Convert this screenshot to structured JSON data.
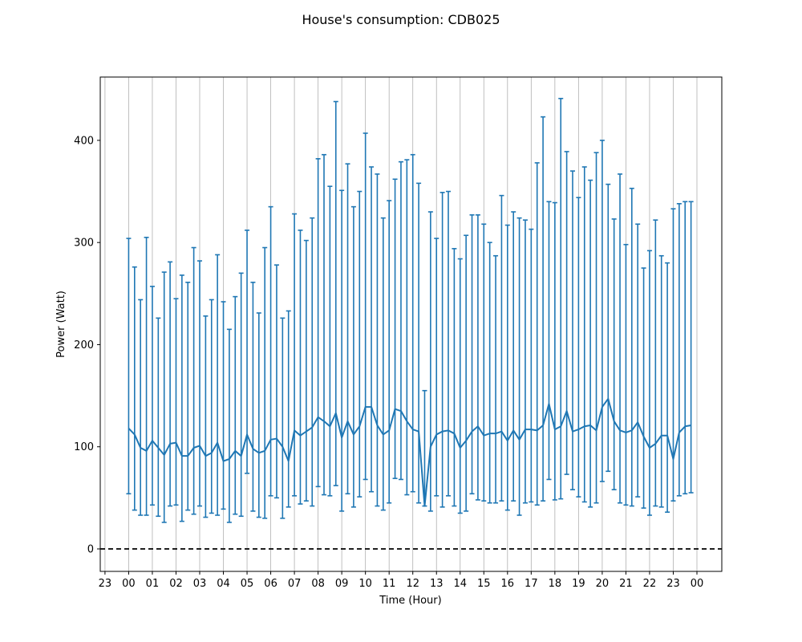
{
  "chart_data": {
    "type": "line",
    "title": "House's consumption: CDB025",
    "xlabel": "Time (Hour)",
    "ylabel": "Power (Watt)",
    "x_tick_labels": [
      "23",
      "00",
      "01",
      "02",
      "03",
      "04",
      "05",
      "06",
      "07",
      "08",
      "09",
      "10",
      "11",
      "12",
      "13",
      "14",
      "15",
      "16",
      "17",
      "18",
      "19",
      "20",
      "21",
      "22",
      "23",
      "00"
    ],
    "y_ticks": [
      0,
      100,
      200,
      300,
      400
    ],
    "ylim": [
      -22,
      462
    ],
    "xlim_hours": [
      -1.2,
      25.05
    ],
    "grid": "vertical",
    "series": [
      {
        "color": "#1f77b4",
        "x_hours": [
          0.0,
          0.25,
          0.5,
          0.75,
          1.0,
          1.25,
          1.5,
          1.75,
          2.0,
          2.25,
          2.5,
          2.75,
          3.0,
          3.25,
          3.5,
          3.75,
          4.0,
          4.25,
          4.5,
          4.75,
          5.0,
          5.25,
          5.5,
          5.75,
          6.0,
          6.25,
          6.5,
          6.75,
          7.0,
          7.25,
          7.5,
          7.75,
          8.0,
          8.25,
          8.5,
          8.75,
          9.0,
          9.25,
          9.5,
          9.75,
          10.0,
          10.25,
          10.5,
          10.75,
          11.0,
          11.25,
          11.5,
          11.75,
          12.0,
          12.25,
          12.5,
          12.75,
          13.0,
          13.25,
          13.5,
          13.75,
          14.0,
          14.25,
          14.5,
          14.75,
          15.0,
          15.25,
          15.5,
          15.75,
          16.0,
          16.25,
          16.5,
          16.75,
          17.0,
          17.25,
          17.5,
          17.75,
          18.0,
          18.25,
          18.5,
          18.75,
          19.0,
          19.25,
          19.5,
          19.75,
          20.0,
          20.25,
          20.5,
          20.75,
          21.0,
          21.25,
          21.5,
          21.75,
          22.0,
          22.25,
          22.5,
          22.75,
          23.0,
          23.25,
          23.5,
          23.75
        ],
        "mean": [
          118,
          112,
          99,
          96,
          106,
          99,
          92,
          103,
          104,
          91,
          91,
          99,
          101,
          91,
          94,
          104,
          86,
          88,
          96,
          91,
          112,
          98,
          94,
          96,
          107,
          108,
          100,
          86,
          116,
          111,
          115,
          119,
          129,
          125,
          120,
          133,
          109,
          125,
          112,
          120,
          139,
          139,
          121,
          112,
          116,
          137,
          135,
          125,
          117,
          115,
          42,
          100,
          112,
          115,
          116,
          113,
          99,
          106,
          115,
          120,
          111,
          113,
          113,
          115,
          106,
          116,
          107,
          117,
          117,
          116,
          121,
          142,
          117,
          120,
          135,
          115,
          117,
          120,
          121,
          116,
          139,
          147,
          125,
          116,
          114,
          116,
          124,
          110,
          99,
          103,
          111,
          111,
          88,
          114,
          120,
          121
        ],
        "lower": [
          54,
          38,
          33,
          33,
          43,
          32,
          26,
          42,
          43,
          27,
          38,
          34,
          42,
          31,
          35,
          33,
          39,
          26,
          34,
          32,
          74,
          37,
          31,
          30,
          52,
          50,
          30,
          41,
          52,
          44,
          47,
          42,
          61,
          53,
          52,
          62,
          37,
          54,
          41,
          51,
          68,
          56,
          42,
          38,
          45,
          69,
          68,
          53,
          56,
          45,
          42,
          37,
          52,
          41,
          52,
          42,
          35,
          37,
          54,
          48,
          47,
          45,
          45,
          47,
          38,
          47,
          33,
          45,
          46,
          43,
          47,
          68,
          48,
          49,
          73,
          58,
          51,
          46,
          41,
          45,
          66,
          76,
          58,
          45,
          43,
          42,
          51,
          40,
          33,
          42,
          41,
          36,
          47,
          52,
          54,
          55
        ],
        "upper": [
          304,
          276,
          244,
          305,
          257,
          226,
          271,
          281,
          245,
          268,
          261,
          295,
          282,
          228,
          244,
          288,
          242,
          215,
          247,
          270,
          312,
          261,
          231,
          295,
          335,
          278,
          226,
          233,
          328,
          312,
          302,
          324,
          382,
          386,
          355,
          438,
          351,
          377,
          335,
          350,
          407,
          374,
          367,
          324,
          341,
          362,
          379,
          381,
          386,
          358,
          155,
          330,
          304,
          349,
          350,
          294,
          284,
          307,
          327,
          327,
          318,
          300,
          287,
          346,
          317,
          330,
          324,
          322,
          313,
          378,
          423,
          340,
          339,
          441,
          389,
          370,
          344,
          374,
          361,
          388,
          400,
          357,
          323,
          367,
          298,
          353,
          318,
          275,
          292,
          322,
          287,
          280,
          333,
          338,
          340,
          340
        ]
      }
    ],
    "reference_line": {
      "y": 0,
      "style": "dashed",
      "color": "#000000"
    }
  }
}
